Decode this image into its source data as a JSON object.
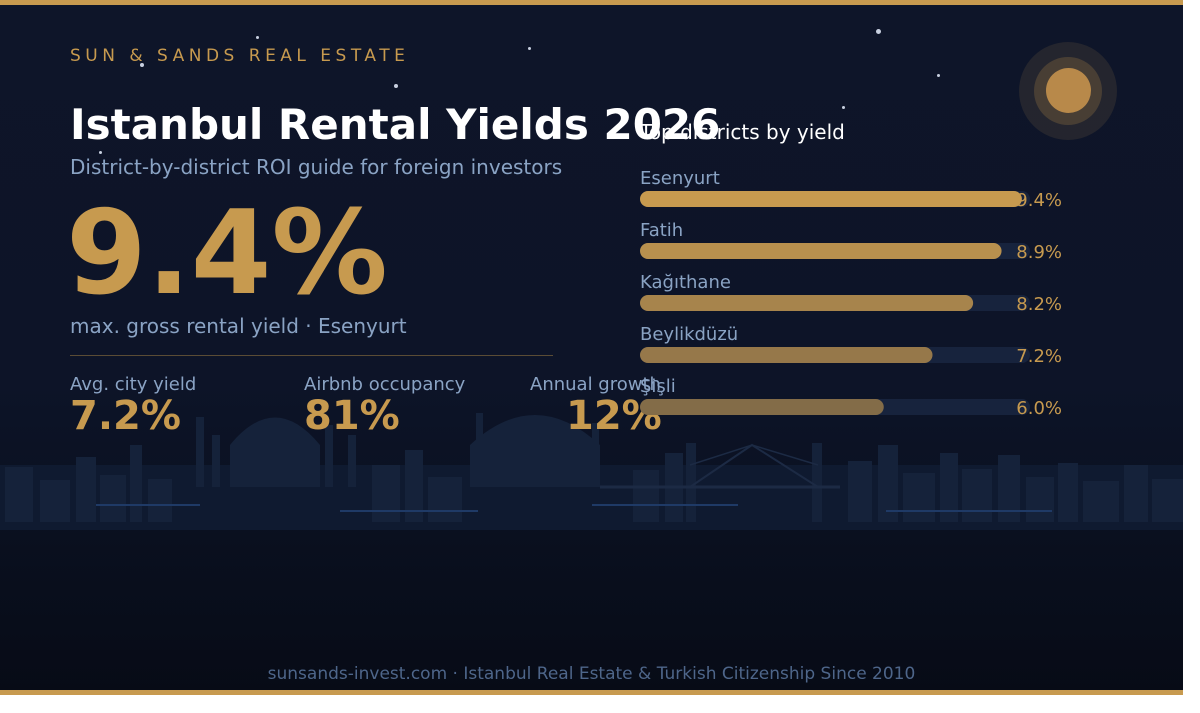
{
  "brand": "SUN & SANDS REAL ESTATE",
  "title": "Istanbul Rental Yields 2026",
  "subtitle": "District-by-district ROI guide for foreign investors",
  "hero": {
    "value": "9.4%",
    "label": "max. gross rental yield · Esenyurt"
  },
  "stats": [
    {
      "label": "Avg. city yield",
      "value": "7.2%"
    },
    {
      "label": "Airbnb occupancy",
      "value": "81%"
    },
    {
      "label": "Annual growth",
      "value": "12%"
    }
  ],
  "colors": {
    "accent": "#c79a4f",
    "background": "#0e1529",
    "muted_text": "#8aa3c4",
    "bar_track": "#17233d"
  },
  "chart_data": {
    "type": "bar",
    "orientation": "horizontal",
    "title": "Top districts by yield",
    "categories": [
      "Esenyurt",
      "Fatih",
      "Kağıthane",
      "Beylikdüzü",
      "Şişli"
    ],
    "values": [
      9.4,
      8.9,
      8.2,
      7.2,
      6.0
    ],
    "value_labels": [
      "9.4%",
      "8.9%",
      "8.2%",
      "7.2%",
      "6.0%"
    ],
    "unit": "%",
    "xlim": [
      0,
      9.6
    ],
    "grid": false,
    "legend": "none"
  },
  "footer": "sunsands-invest.com · Istanbul Real Estate & Turkish Citizenship Since 2010"
}
